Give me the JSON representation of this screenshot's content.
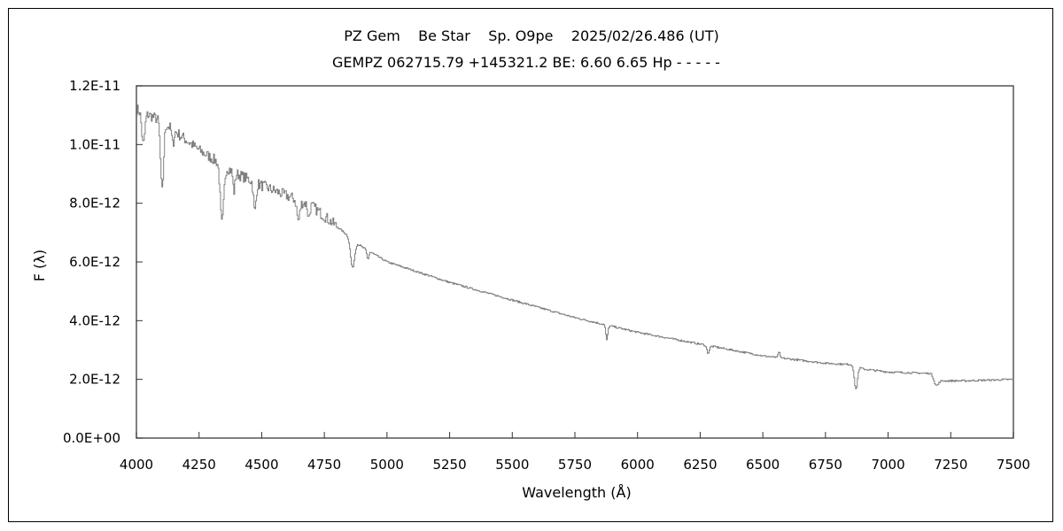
{
  "chart_data": {
    "type": "line",
    "title": "PZ Gem    Be Star    Sp. O9pe    2025/02/26.486 (UT)",
    "subtitle": "GEMPZ 062715.79 +145321.2 BE: 6.60 6.65 Hp - - - - -",
    "xlabel": "Wavelength (Å)",
    "ylabel": "F (λ)",
    "xlim": [
      4000,
      7500
    ],
    "ylim": [
      0,
      1.2e-11
    ],
    "x_ticks": [
      4000,
      4250,
      4500,
      4750,
      5000,
      5250,
      5500,
      5750,
      6000,
      6250,
      6500,
      6750,
      7000,
      7250,
      7500
    ],
    "x_tick_labels": [
      "4000",
      "4250",
      "4500",
      "4750",
      "5000",
      "5250",
      "5500",
      "5750",
      "6000",
      "6250",
      "6500",
      "6750",
      "7000",
      "7250",
      "7500"
    ],
    "y_ticks": [
      0,
      2e-12,
      4e-12,
      6e-12,
      8e-12,
      1e-11,
      1.2e-11
    ],
    "y_tick_labels": [
      "0.0E+00",
      "2.0E-12",
      "4.0E-12",
      "6.0E-12",
      "8.0E-12",
      "1.0E-11",
      "1.2E-11"
    ],
    "grid": false,
    "series_color": "#808080",
    "continuum_1e-12": [
      [
        4000,
        11.2
      ],
      [
        4100,
        10.8
      ],
      [
        4250,
        9.8
      ],
      [
        4400,
        9.0
      ],
      [
        4500,
        8.6
      ],
      [
        4700,
        7.9
      ],
      [
        4800,
        7.2
      ],
      [
        4900,
        6.5
      ],
      [
        5000,
        6.0
      ],
      [
        5250,
        5.3
      ],
      [
        5500,
        4.7
      ],
      [
        5750,
        4.1
      ],
      [
        6000,
        3.6
      ],
      [
        6250,
        3.2
      ],
      [
        6500,
        2.8
      ],
      [
        6750,
        2.55
      ],
      [
        6860,
        2.5
      ],
      [
        6900,
        2.35
      ],
      [
        7000,
        2.25
      ],
      [
        7170,
        2.2
      ],
      [
        7200,
        1.95
      ],
      [
        7300,
        1.95
      ],
      [
        7500,
        2.0
      ]
    ],
    "lines_1e-12": [
      [
        4026,
        10.0,
        6
      ],
      [
        4101,
        8.4,
        6
      ],
      [
        4144,
        10.0,
        4
      ],
      [
        4340,
        7.3,
        7
      ],
      [
        4388,
        8.4,
        4
      ],
      [
        4471,
        7.7,
        5
      ],
      [
        4645,
        7.4,
        6
      ],
      [
        4686,
        7.5,
        4
      ],
      [
        4861,
        5.8,
        8
      ],
      [
        4922,
        6.1,
        4
      ],
      [
        5876,
        3.35,
        4
      ],
      [
        6280,
        2.9,
        5
      ],
      [
        6563,
        2.95,
        3
      ],
      [
        6870,
        1.65,
        6
      ],
      [
        7190,
        1.8,
        8
      ]
    ]
  }
}
